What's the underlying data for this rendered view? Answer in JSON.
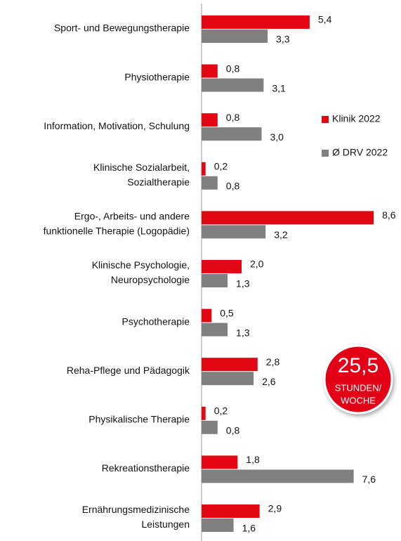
{
  "chart_data": {
    "type": "bar",
    "categories": [
      [
        "Sport- und Bewegungstherapie"
      ],
      [
        "Physiotherapie"
      ],
      [
        "Information, Motivation, Schulung"
      ],
      [
        "Klinische Sozialarbeit,",
        "Sozialtherapie"
      ],
      [
        "Ergo-, Arbeits- und andere",
        "funktionelle Therapie (Logopädie)"
      ],
      [
        "Klinische Psychologie,",
        "Neuropsychologie"
      ],
      [
        "Psychotherapie"
      ],
      [
        "Reha-Pflege und Pädagogik"
      ],
      [
        "Physikalische Therapie"
      ],
      [
        "Rekreationstherapie"
      ],
      [
        "Ernährungsmedizinische",
        "Leistungen"
      ]
    ],
    "series": [
      {
        "name": "Klinik 2022",
        "color": "#e30613",
        "values": [
          5.4,
          0.8,
          0.8,
          0.2,
          8.6,
          2.0,
          0.5,
          2.8,
          0.2,
          1.8,
          2.9
        ],
        "value_labels": [
          "5,4",
          "0,8",
          "0,8",
          "0,2",
          "8,6",
          "2,0",
          "0,5",
          "2,8",
          "0,2",
          "1,8",
          "2,9"
        ]
      },
      {
        "name": "Ø DRV 2022",
        "color": "#808080",
        "values": [
          3.3,
          3.1,
          3.0,
          0.8,
          3.2,
          1.3,
          1.3,
          2.6,
          0.8,
          7.6,
          1.6
        ],
        "value_labels": [
          "3,3",
          "3,1",
          "3,0",
          "0,8",
          "3,2",
          "1,3",
          "1,3",
          "2,6",
          "0,8",
          "7,6",
          "1,6"
        ]
      }
    ],
    "legend": "right",
    "annotation": {
      "value": "25,5",
      "lines": [
        "STUNDEN/",
        "WOCHE"
      ]
    }
  }
}
